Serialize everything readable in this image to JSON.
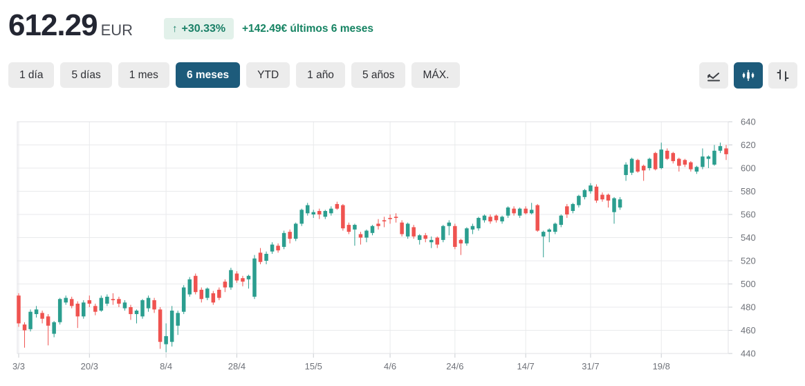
{
  "header": {
    "price": "612.29",
    "currency": "EUR",
    "change_arrow": "↑",
    "change_percent": "+30.33%",
    "change_text": "+142.49€ últimos 6 meses",
    "badge_bg": "#e2f1ea",
    "positive_color": "#158362"
  },
  "ranges": [
    {
      "label": "1 día",
      "selected": false
    },
    {
      "label": "5 días",
      "selected": false
    },
    {
      "label": "1 mes",
      "selected": false
    },
    {
      "label": "6 meses",
      "selected": true
    },
    {
      "label": "YTD",
      "selected": false
    },
    {
      "label": "1 año",
      "selected": false
    },
    {
      "label": "5 años",
      "selected": false
    },
    {
      "label": "MÁX.",
      "selected": false
    }
  ],
  "chart_tools": [
    {
      "name": "line-chart",
      "selected": false
    },
    {
      "name": "candlestick-chart",
      "selected": true
    },
    {
      "name": "ohlc-chart",
      "selected": false
    }
  ],
  "selected_accent": "#1d5b7b",
  "chart_data": {
    "type": "candlestick",
    "title": "",
    "xlabel": "",
    "ylabel": "",
    "ylim": [
      440,
      640
    ],
    "y_ticks": [
      440,
      460,
      480,
      500,
      520,
      540,
      560,
      580,
      600,
      620,
      640
    ],
    "x_ticks": [
      {
        "label": "3/3",
        "index": 0
      },
      {
        "label": "20/3",
        "index": 12
      },
      {
        "label": "8/4",
        "index": 25
      },
      {
        "label": "28/4",
        "index": 37
      },
      {
        "label": "15/5",
        "index": 50
      },
      {
        "label": "4/6",
        "index": 63
      },
      {
        "label": "24/6",
        "index": 74
      },
      {
        "label": "14/7",
        "index": 86
      },
      {
        "label": "31/7",
        "index": 97
      },
      {
        "label": "19/8",
        "index": 109
      }
    ],
    "colors": {
      "up": "#2b9e8f",
      "down": "#ef5350"
    },
    "grid_color": "#e9eaec",
    "border_color": "#e0e2e5",
    "tick_color": "#c9ccd1",
    "label_color": "#6e7178",
    "candles": [
      [
        490,
        492,
        463,
        466
      ],
      [
        465,
        467,
        445,
        460
      ],
      [
        461,
        478,
        459,
        476
      ],
      [
        474,
        481,
        471,
        478
      ],
      [
        475,
        477,
        466,
        470
      ],
      [
        472,
        474,
        447,
        464
      ],
      [
        457,
        468,
        454,
        467
      ],
      [
        467,
        488,
        465,
        487
      ],
      [
        484,
        490,
        482,
        488
      ],
      [
        487,
        489,
        479,
        481
      ],
      [
        483,
        485,
        462,
        472
      ],
      [
        472,
        486,
        470,
        484
      ],
      [
        486,
        490,
        480,
        483
      ],
      [
        481,
        483,
        473,
        476
      ],
      [
        477,
        490,
        476,
        488
      ],
      [
        483,
        491,
        481,
        489
      ],
      [
        487,
        492,
        482,
        486
      ],
      [
        487,
        489,
        480,
        483
      ],
      [
        479,
        486,
        477,
        484
      ],
      [
        480,
        482,
        469,
        474
      ],
      [
        474,
        478,
        466,
        477
      ],
      [
        472,
        487,
        470,
        486
      ],
      [
        479,
        490,
        476,
        488
      ],
      [
        486,
        488,
        475,
        478
      ],
      [
        478,
        480,
        444,
        450
      ],
      [
        448,
        466,
        441,
        455
      ],
      [
        450,
        481,
        446,
        477
      ],
      [
        464,
        477,
        456,
        475
      ],
      [
        476,
        499,
        474,
        497
      ],
      [
        491,
        506,
        489,
        504
      ],
      [
        507,
        509,
        491,
        493
      ],
      [
        495,
        497,
        484,
        487
      ],
      [
        488,
        497,
        486,
        496
      ],
      [
        492,
        494,
        482,
        484
      ],
      [
        495,
        497,
        486,
        488
      ],
      [
        502,
        504,
        493,
        497
      ],
      [
        497,
        514,
        495,
        512
      ],
      [
        509,
        511,
        501,
        503
      ],
      [
        505,
        507,
        498,
        502
      ],
      [
        504,
        508,
        496,
        507
      ],
      [
        489,
        525,
        487,
        522
      ],
      [
        527,
        531,
        517,
        519
      ],
      [
        520,
        528,
        517,
        526
      ],
      [
        528,
        536,
        526,
        534
      ],
      [
        533,
        535,
        527,
        529
      ],
      [
        532,
        546,
        530,
        544
      ],
      [
        545,
        547,
        535,
        539
      ],
      [
        539,
        553,
        537,
        552
      ],
      [
        552,
        565,
        550,
        564
      ],
      [
        561,
        570,
        559,
        568
      ],
      [
        560,
        564,
        557,
        562
      ],
      [
        563,
        565,
        556,
        560
      ],
      [
        558,
        564,
        556,
        563
      ],
      [
        561,
        567,
        559,
        565
      ],
      [
        569,
        571,
        564,
        565
      ],
      [
        568,
        569,
        546,
        548
      ],
      [
        551,
        553,
        543,
        545
      ],
      [
        547,
        552,
        533,
        551
      ],
      [
        543,
        545,
        534,
        540
      ],
      [
        540,
        547,
        536,
        546
      ],
      [
        544,
        551,
        542,
        550
      ],
      [
        552,
        556,
        547,
        550
      ],
      [
        555,
        558,
        549,
        554
      ],
      [
        557,
        560,
        552,
        556
      ],
      [
        558,
        561,
        553,
        557
      ],
      [
        553,
        555,
        541,
        543
      ],
      [
        541,
        553,
        539,
        552
      ],
      [
        549,
        551,
        539,
        541
      ],
      [
        538,
        543,
        534,
        542
      ],
      [
        542,
        544,
        536,
        539
      ],
      [
        536,
        541,
        531,
        538
      ],
      [
        540,
        541,
        531,
        534
      ],
      [
        538,
        551,
        536,
        550
      ],
      [
        550,
        555,
        542,
        553
      ],
      [
        550,
        552,
        530,
        532
      ],
      [
        538,
        539,
        525,
        535
      ],
      [
        535,
        549,
        533,
        548
      ],
      [
        547,
        552,
        543,
        550
      ],
      [
        548,
        558,
        546,
        557
      ],
      [
        555,
        560,
        553,
        559
      ],
      [
        558,
        560,
        552,
        554
      ],
      [
        559,
        560,
        553,
        555
      ],
      [
        554,
        559,
        552,
        558
      ],
      [
        559,
        567,
        557,
        566
      ],
      [
        565,
        567,
        559,
        561
      ],
      [
        559,
        566,
        557,
        565
      ],
      [
        565,
        567,
        560,
        561
      ],
      [
        561,
        570,
        560,
        564
      ],
      [
        568,
        569,
        545,
        546
      ],
      [
        541,
        546,
        523,
        545
      ],
      [
        545,
        548,
        536,
        547
      ],
      [
        545,
        553,
        543,
        552
      ],
      [
        551,
        560,
        549,
        559
      ],
      [
        567,
        569,
        557,
        560
      ],
      [
        563,
        570,
        561,
        569
      ],
      [
        568,
        577,
        566,
        576
      ],
      [
        575,
        582,
        573,
        581
      ],
      [
        580,
        587,
        578,
        585
      ],
      [
        584,
        586,
        570,
        572
      ],
      [
        577,
        579,
        571,
        573
      ],
      [
        577,
        578,
        566,
        572
      ],
      [
        562,
        575,
        552,
        574
      ],
      [
        566,
        575,
        564,
        573
      ],
      [
        594,
        605,
        589,
        603
      ],
      [
        596,
        609,
        594,
        608
      ],
      [
        607,
        608,
        596,
        597
      ],
      [
        602,
        603,
        589,
        598
      ],
      [
        600,
        609,
        598,
        608
      ],
      [
        613,
        614,
        598,
        599
      ],
      [
        600,
        622,
        599,
        616
      ],
      [
        615,
        617,
        607,
        608
      ],
      [
        613,
        614,
        604,
        606
      ],
      [
        608,
        609,
        597,
        602
      ],
      [
        607,
        608,
        601,
        603
      ],
      [
        605,
        606,
        597,
        599
      ],
      [
        597,
        602,
        595,
        601
      ],
      [
        601,
        617,
        599,
        610
      ],
      [
        608,
        611,
        600,
        610
      ],
      [
        603,
        620,
        602,
        615
      ],
      [
        615,
        622,
        613,
        619
      ],
      [
        617,
        620,
        607,
        612
      ]
    ]
  }
}
